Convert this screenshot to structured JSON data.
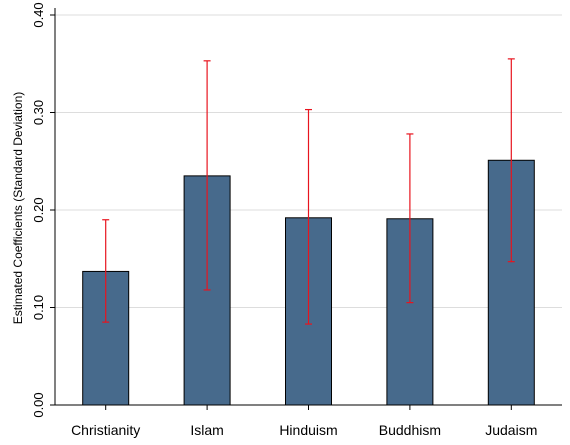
{
  "chart_data": {
    "type": "bar",
    "title": "",
    "xlabel": "",
    "ylabel": "Estimated Coefficients (Standard Deviation)",
    "categories": [
      "Christianity",
      "Islam",
      "Hinduism",
      "Buddhism",
      "Judaism"
    ],
    "values": [
      0.137,
      0.235,
      0.192,
      0.191,
      0.251
    ],
    "error_low": [
      0.085,
      0.118,
      0.083,
      0.105,
      0.147
    ],
    "error_high": [
      0.19,
      0.353,
      0.303,
      0.278,
      0.355
    ],
    "ylim": [
      0,
      0.4
    ],
    "yticks": [
      0,
      0.1,
      0.2,
      0.3,
      0.4
    ],
    "ytick_labels": [
      "0.00",
      "0.10",
      "0.20",
      "0.30",
      "0.40"
    ],
    "grid": true,
    "colors": {
      "bar": "#476a8c",
      "error_bar": "#e8141e",
      "grid": "#dddddd",
      "axis": "#000000"
    }
  }
}
